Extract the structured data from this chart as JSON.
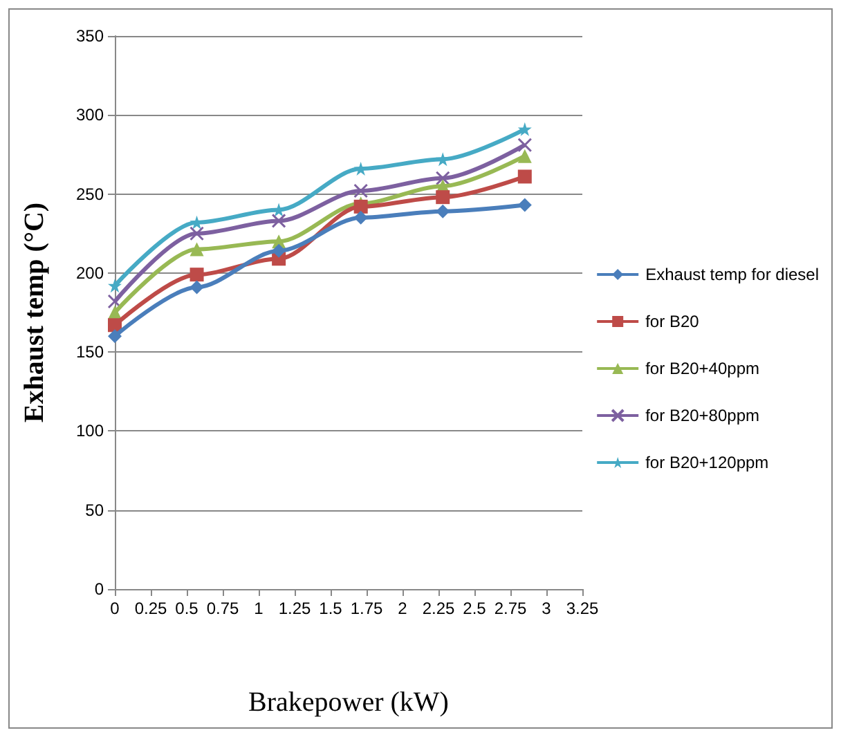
{
  "chart_data": {
    "type": "line",
    "xlabel": "Brakepower (kW)",
    "ylabel": "Exhaust temp (°C)",
    "xlim": [
      0,
      3.25
    ],
    "xticks": [
      0,
      0.25,
      0.5,
      0.75,
      1,
      1.25,
      1.5,
      1.75,
      2,
      2.25,
      2.5,
      2.75,
      3,
      3.25
    ],
    "ylim": [
      0,
      350
    ],
    "yticks": [
      0,
      50,
      100,
      150,
      200,
      250,
      300,
      350
    ],
    "grid": "y",
    "legend": "right",
    "x": [
      0,
      0.57,
      1.14,
      1.71,
      2.28,
      2.85
    ],
    "series": [
      {
        "name": "Exhaust temp for diesel",
        "color": "#4a7ebb",
        "marker": "diamond",
        "values": [
          160,
          191,
          214,
          235,
          239,
          243
        ]
      },
      {
        "name": "for B20",
        "color": "#be4b48",
        "marker": "square",
        "values": [
          167,
          199,
          209,
          242,
          248,
          261
        ]
      },
      {
        "name": "for B20+40ppm",
        "color": "#98b954",
        "marker": "triangle",
        "values": [
          175,
          215,
          220,
          244,
          255,
          274
        ]
      },
      {
        "name": "for B20+80ppm",
        "color": "#7d60a0",
        "marker": "cross",
        "values": [
          182,
          225,
          233,
          252,
          260,
          281
        ]
      },
      {
        "name": "for B20+120ppm",
        "color": "#46aac5",
        "marker": "star",
        "values": [
          192,
          232,
          240,
          266,
          272,
          291
        ]
      }
    ]
  }
}
